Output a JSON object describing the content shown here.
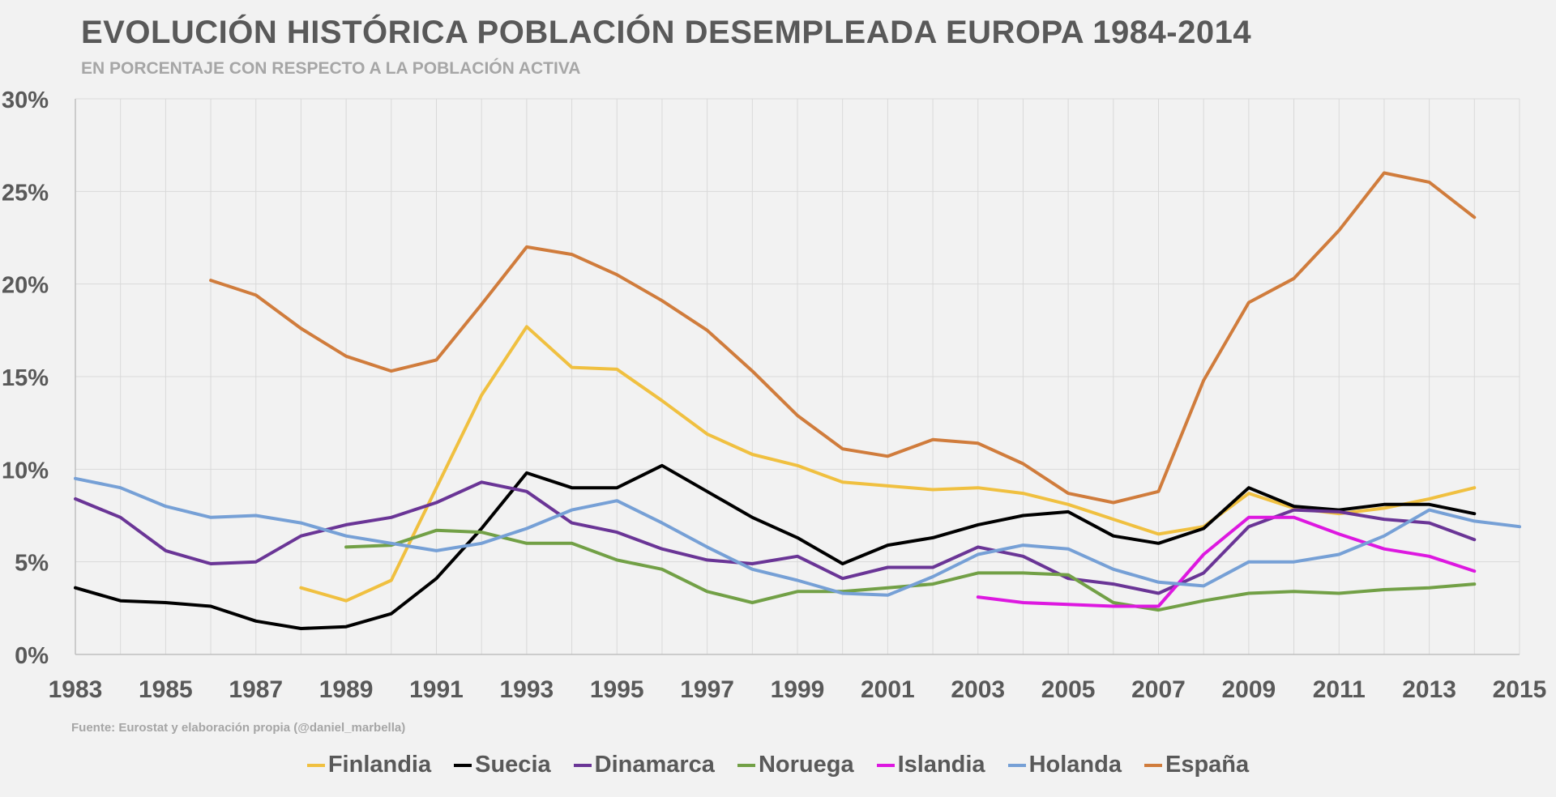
{
  "chart_data": {
    "type": "line",
    "title": "EVOLUCIÓN HISTÓRICA POBLACIÓN DESEMPLEADA EUROPA 1984-2014",
    "subtitle": "EN PORCENTAJE CON RESPECTO A LA POBLACIÓN ACTIVA",
    "source": "Fuente:  Eurostat y elaboración propia (@daniel_marbella)",
    "xlabel": "",
    "ylabel": "",
    "xlim": [
      1983,
      2015
    ],
    "ylim": [
      0,
      30
    ],
    "x_ticks": [
      "1983",
      "1985",
      "1987",
      "1989",
      "1991",
      "1993",
      "1995",
      "1997",
      "1999",
      "2001",
      "2003",
      "2005",
      "2007",
      "2009",
      "2011",
      "2013",
      "2015"
    ],
    "y_ticks": [
      "0%",
      "5%",
      "10%",
      "15%",
      "20%",
      "25%",
      "30%"
    ],
    "grid": true,
    "legend_position": "bottom",
    "series": [
      {
        "name": "Finlandia",
        "color": "#f0c040",
        "x": [
          1988,
          1989,
          1990,
          1991,
          1992,
          1993,
          1994,
          1995,
          1996,
          1997,
          1998,
          1999,
          2000,
          2001,
          2002,
          2003,
          2004,
          2005,
          2006,
          2007,
          2008,
          2009,
          2010,
          2011,
          2012,
          2013,
          2014
        ],
        "values": [
          3.6,
          2.9,
          4.0,
          9.0,
          14.0,
          17.7,
          15.5,
          15.4,
          13.7,
          11.9,
          10.8,
          10.2,
          9.3,
          9.1,
          8.9,
          9.0,
          8.7,
          8.1,
          7.3,
          6.5,
          6.9,
          8.7,
          7.9,
          7.6,
          7.9,
          8.4,
          9.0
        ]
      },
      {
        "name": "Suecia",
        "color": "#000000",
        "x": [
          1983,
          1984,
          1985,
          1986,
          1987,
          1988,
          1989,
          1990,
          1991,
          1992,
          1993,
          1994,
          1995,
          1996,
          1997,
          1998,
          1999,
          2000,
          2001,
          2002,
          2003,
          2004,
          2005,
          2006,
          2007,
          2008,
          2009,
          2010,
          2011,
          2012,
          2013,
          2014
        ],
        "values": [
          3.6,
          2.9,
          2.8,
          2.6,
          1.8,
          1.4,
          1.5,
          2.2,
          4.1,
          6.8,
          9.8,
          9.0,
          9.0,
          10.2,
          8.8,
          7.4,
          6.3,
          4.9,
          5.9,
          6.3,
          7.0,
          7.5,
          7.7,
          6.4,
          6.0,
          6.8,
          9.0,
          8.0,
          7.8,
          8.1,
          8.1,
          7.6
        ]
      },
      {
        "name": "Dinamarca",
        "color": "#6a3596",
        "x": [
          1983,
          1984,
          1985,
          1986,
          1987,
          1988,
          1989,
          1990,
          1991,
          1992,
          1993,
          1994,
          1995,
          1996,
          1997,
          1998,
          1999,
          2000,
          2001,
          2002,
          2003,
          2004,
          2005,
          2006,
          2007,
          2008,
          2009,
          2010,
          2011,
          2012,
          2013,
          2014
        ],
        "values": [
          8.4,
          7.4,
          5.6,
          4.9,
          5.0,
          6.4,
          7.0,
          7.4,
          8.2,
          9.3,
          8.8,
          7.1,
          6.6,
          5.7,
          5.1,
          4.9,
          5.3,
          4.1,
          4.7,
          4.7,
          5.8,
          5.3,
          4.1,
          3.8,
          3.3,
          4.4,
          6.9,
          7.8,
          7.7,
          7.3,
          7.1,
          6.2
        ]
      },
      {
        "name": "Noruega",
        "color": "#72a046",
        "x": [
          1989,
          1990,
          1991,
          1992,
          1993,
          1994,
          1995,
          1996,
          1997,
          1998,
          1999,
          2000,
          2001,
          2002,
          2003,
          2004,
          2005,
          2006,
          2007,
          2008,
          2009,
          2010,
          2011,
          2012,
          2013,
          2014
        ],
        "values": [
          5.8,
          5.9,
          6.7,
          6.6,
          6.0,
          6.0,
          5.1,
          4.6,
          3.4,
          2.8,
          3.4,
          3.4,
          3.6,
          3.8,
          4.4,
          4.4,
          4.3,
          2.8,
          2.4,
          2.9,
          3.3,
          3.4,
          3.3,
          3.5,
          3.6,
          3.8
        ]
      },
      {
        "name": "Islandia",
        "color": "#dd18e0",
        "x": [
          2003,
          2004,
          2005,
          2006,
          2007,
          2008,
          2009,
          2010,
          2011,
          2012,
          2013,
          2014
        ],
        "values": [
          3.1,
          2.8,
          2.7,
          2.6,
          2.6,
          5.4,
          7.4,
          7.4,
          6.5,
          5.7,
          5.3,
          4.5
        ]
      },
      {
        "name": "Holanda",
        "color": "#76a0d6",
        "x": [
          1983,
          1984,
          1985,
          1986,
          1987,
          1988,
          1989,
          1990,
          1991,
          1992,
          1993,
          1994,
          1995,
          1996,
          1997,
          1998,
          1999,
          2000,
          2001,
          2002,
          2003,
          2004,
          2005,
          2006,
          2007,
          2008,
          2009,
          2010,
          2011,
          2012,
          2013,
          2014,
          2015
        ],
        "values": [
          9.5,
          9.0,
          8.0,
          7.4,
          7.5,
          7.1,
          6.4,
          6.0,
          5.6,
          6.0,
          6.8,
          7.8,
          8.3,
          7.1,
          5.8,
          4.6,
          4.0,
          3.3,
          3.2,
          4.2,
          5.4,
          5.9,
          5.7,
          4.6,
          3.9,
          3.7,
          5.0,
          5.0,
          5.4,
          6.4,
          7.8,
          7.2,
          6.9
        ]
      },
      {
        "name": "España",
        "color": "#d07c3c",
        "x": [
          1986,
          1987,
          1988,
          1989,
          1990,
          1991,
          1992,
          1993,
          1994,
          1995,
          1996,
          1997,
          1998,
          1999,
          2000,
          2001,
          2002,
          2003,
          2004,
          2005,
          2006,
          2007,
          2008,
          2009,
          2010,
          2011,
          2012,
          2013,
          2014
        ],
        "values": [
          20.2,
          19.4,
          17.6,
          16.1,
          15.3,
          15.9,
          18.9,
          22.0,
          21.6,
          20.5,
          19.1,
          17.5,
          15.3,
          12.9,
          11.1,
          10.7,
          11.6,
          11.4,
          10.3,
          8.7,
          8.2,
          8.8,
          14.8,
          19.0,
          20.3,
          22.9,
          26.0,
          25.5,
          23.6
        ]
      }
    ]
  }
}
